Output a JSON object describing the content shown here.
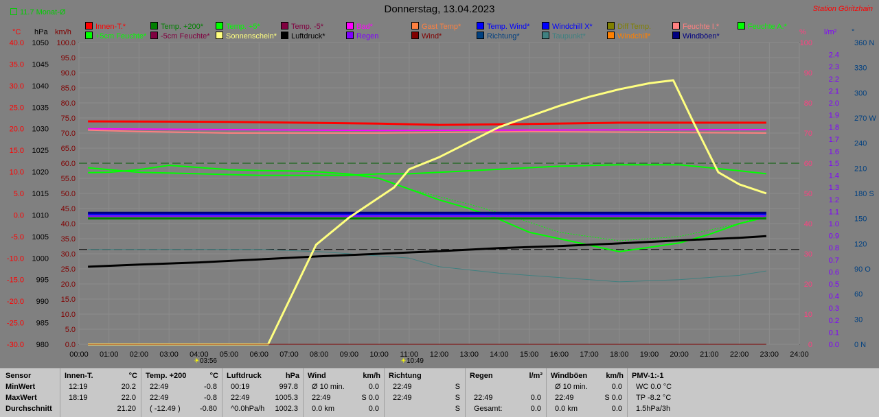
{
  "header": {
    "title": "Donnerstag, 13.04.2023",
    "station": "Station Göritzhain",
    "average_label": "11.7 Monat-Ø"
  },
  "legend": {
    "row1": [
      {
        "label": "Innen-T.*",
        "color": "#ff0000"
      },
      {
        "label": "Temp. +200*",
        "color": "#008000"
      },
      {
        "label": "Temp. +5*",
        "color": "#00ff00"
      },
      {
        "label": "Temp. -5*",
        "color": "#800040"
      },
      {
        "label": "Bad*",
        "color": "#ff00ff"
      },
      {
        "label": "Gast Temp*",
        "color": "#ff8040"
      },
      {
        "label": "Temp. Wind*",
        "color": "#0000ff"
      },
      {
        "label": "Windchill X*",
        "color": "#0000ff"
      },
      {
        "label": "Diff Temp.",
        "color": "#808000"
      },
      {
        "label": "Feuchte I.*",
        "color": "#ff8080"
      },
      {
        "label": "Feuchte A.*",
        "color": "#00ff00"
      }
    ],
    "row2": [
      {
        "label": "+5cm Feuchte*",
        "color": "#00ff00"
      },
      {
        "label": "-5cm Feuchte*",
        "color": "#800040"
      },
      {
        "label": "Sonnenschein*",
        "color": "#ffff80"
      },
      {
        "label": "Luftdruck*",
        "color": "#000000"
      },
      {
        "label": "Regen",
        "color": "#8000ff"
      },
      {
        "label": "Wind*",
        "color": "#800000"
      },
      {
        "label": "Richtung*",
        "color": "#004080"
      },
      {
        "label": "Taupunkt*",
        "color": "#408080"
      },
      {
        "label": "Windchill*",
        "color": "#ff8000"
      },
      {
        "label": "Windböen*",
        "color": "#000080"
      }
    ]
  },
  "units": {
    "temp": "°C",
    "hpa": "hPa",
    "kmh": "km/h",
    "pct": "%",
    "rain": "l/m²",
    "deg": "°"
  },
  "sun_markers": {
    "sunrise": "03:56",
    "sunset": "10:49"
  },
  "chart_data": {
    "type": "line",
    "x_range_hours": [
      0,
      24
    ],
    "x_ticks": [
      "00:00",
      "01:00",
      "02:00",
      "03:00",
      "04:00",
      "05:00",
      "06:00",
      "07:00",
      "08:00",
      "09:00",
      "10:00",
      "11:00",
      "12:00",
      "13:00",
      "14:00",
      "15:00",
      "16:00",
      "17:00",
      "18:00",
      "19:00",
      "20:00",
      "21:00",
      "22:00",
      "23:00",
      "24:00"
    ],
    "axes": {
      "temp": {
        "ticks": [
          "40.0",
          "35.0",
          "30.0",
          "25.0",
          "20.0",
          "15.0",
          "10.0",
          "5.0",
          "0.0",
          "-5.0",
          "-10.0",
          "-15.0",
          "-20.0",
          "-25.0",
          "-30.0"
        ],
        "range": [
          -30,
          40
        ]
      },
      "pressure": {
        "ticks": [
          "1050",
          "1045",
          "1040",
          "1035",
          "1030",
          "1025",
          "1020",
          "1015",
          "1010",
          "1005",
          "1000",
          "995",
          "990",
          "985",
          "980"
        ],
        "range": [
          980,
          1050
        ]
      },
      "speed": {
        "ticks": [
          "100.0",
          "95.0",
          "90.0",
          "85.0",
          "80.0",
          "75.0",
          "70.0",
          "65.0",
          "60.0",
          "55.0",
          "50.0",
          "45.0",
          "40.0",
          "35.0",
          "30.0",
          "25.0",
          "20.0",
          "15.0",
          "10.0",
          "5.0",
          "0.0"
        ],
        "range": [
          0,
          100
        ]
      },
      "humidity": {
        "ticks": [
          "100",
          "90",
          "80",
          "70",
          "60",
          "50",
          "40",
          "30",
          "20",
          "10",
          "0"
        ],
        "range": [
          0,
          100
        ]
      },
      "rain": {
        "ticks": [
          "2.4",
          "2.3",
          "2.2",
          "2.1",
          "2.0",
          "1.9",
          "1.8",
          "1.7",
          "1.6",
          "1.5",
          "1.4",
          "1.3",
          "1.2",
          "1.1",
          "1.0",
          "0.9",
          "0.8",
          "0.7",
          "0.6",
          "0.5",
          "0.4",
          "0.3",
          "0.2",
          "0.1",
          "0.0"
        ],
        "range": [
          0,
          2.5
        ]
      },
      "direction": {
        "ticks": [
          "360 N",
          "330",
          "300",
          "270 W",
          "240",
          "210",
          "180 S",
          "150",
          "120",
          "90 O",
          "60",
          "30",
          "0 N"
        ],
        "range": [
          0,
          360
        ]
      }
    },
    "series": [
      {
        "name": "Innen-T.*",
        "color": "#ff0000",
        "width": 3,
        "axis": "temp",
        "x": [
          0.3,
          5,
          10,
          12,
          15,
          18,
          22.9
        ],
        "y": [
          21.7,
          21.6,
          21.2,
          20.9,
          21.1,
          21.4,
          21.4
        ]
      },
      {
        "name": "Bad*",
        "color": "#ff00ff",
        "width": 2,
        "axis": "temp",
        "x": [
          0.3,
          5,
          10,
          15,
          22.9
        ],
        "y": [
          20.0,
          19.8,
          19.6,
          19.7,
          19.8
        ]
      },
      {
        "name": "Feuchte I.*",
        "color": "#ff8080",
        "width": 2,
        "axis": "humidity",
        "x": [
          0.3,
          2,
          5,
          10,
          15,
          22.9
        ],
        "y": [
          71,
          70.5,
          70,
          70,
          70.5,
          70
        ]
      },
      {
        "name": "Feuchte A.*",
        "color": "#00ff00",
        "width": 2,
        "axis": "humidity",
        "x": [
          0.3,
          2,
          4,
          6,
          8,
          9,
          10,
          11,
          12,
          14,
          16,
          18,
          20,
          22,
          22.9
        ],
        "y": [
          58.5,
          57,
          56.5,
          56,
          56,
          56,
          56.5,
          56.5,
          57,
          58,
          59,
          59.5,
          59.5,
          57.5,
          56.5
        ]
      },
      {
        "name": "Temp. +5*",
        "color": "#00ff00",
        "width": 2,
        "axis": "temp",
        "x": [
          0.3,
          1,
          2,
          3,
          4,
          5,
          6,
          7,
          8,
          9,
          10,
          11,
          12,
          13,
          14,
          15,
          16,
          17,
          18,
          18.3,
          19,
          20,
          21,
          22,
          22.9
        ],
        "y": [
          9.8,
          9.9,
          10.5,
          11.5,
          11,
          10.5,
          10.3,
          10.2,
          10,
          9.5,
          8.5,
          6,
          3.5,
          1.5,
          -1,
          -4,
          -5.5,
          -7,
          -8.5,
          -8.2,
          -7.5,
          -6.5,
          -4.5,
          -2,
          -0.5
        ]
      },
      {
        "name": "Windchill*",
        "color": "#00ff00",
        "width": 1,
        "dash": "2,2",
        "axis": "temp",
        "x": [
          11,
          13,
          14.5,
          16,
          18,
          20,
          22,
          22.9
        ],
        "y": [
          6,
          2.5,
          -0.5,
          -4,
          -6,
          -5,
          -2,
          0
        ]
      },
      {
        "name": "Temp. +200*",
        "color": "#008000",
        "width": 3,
        "axis": "temp",
        "x": [
          0.3,
          22.9
        ],
        "y": [
          -0.8,
          -0.8
        ]
      },
      {
        "name": "Temp. Wind*",
        "color": "#0000ff",
        "width": 3,
        "axis": "temp",
        "x": [
          0.3,
          22.9
        ],
        "y": [
          0.2,
          0.2
        ]
      },
      {
        "name": "Windböen*",
        "color": "#000080",
        "width": 3,
        "axis": "temp",
        "x": [
          0.3,
          22.9
        ],
        "y": [
          0.5,
          0.5
        ]
      },
      {
        "name": "Regen",
        "color": "#8000ff",
        "width": 2,
        "axis": "temp",
        "x": [
          0.3,
          22.9
        ],
        "y": [
          -0.3,
          -0.3
        ]
      },
      {
        "name": "Taupunkt*",
        "color": "#408080",
        "width": 1,
        "axis": "temp",
        "x": [
          0.3,
          2,
          4,
          6,
          8,
          10,
          11,
          12,
          14,
          16,
          18,
          20,
          22,
          22.9
        ],
        "y": [
          -8,
          -8,
          -8,
          -8,
          -8.5,
          -9.5,
          -10,
          -12,
          -13.5,
          -14.5,
          -15.5,
          -15,
          -14,
          -13
        ]
      },
      {
        "name": "Luftdruck*",
        "color": "#000000",
        "width": 3,
        "axis": "pressure",
        "x": [
          0.3,
          2,
          4,
          6,
          8,
          10,
          12,
          14,
          16,
          18,
          20,
          22,
          22.9
        ],
        "y": [
          998,
          998.5,
          999,
          999.7,
          1000.4,
          1001,
          1001.6,
          1002.3,
          1002.8,
          1003.4,
          1004.1,
          1004.7,
          1005.1
        ]
      },
      {
        "name": "Sonnenschein*",
        "color": "#ffff80",
        "width": 3,
        "axis": "speed",
        "x": [
          0.3,
          6.3,
          7.9,
          9,
          10.5,
          11,
          12,
          13,
          14,
          15,
          16,
          17,
          18,
          19,
          19.8,
          20.5,
          21.3,
          22,
          22.9
        ],
        "y": [
          0,
          0,
          33,
          42,
          52,
          58,
          62,
          67,
          72,
          75.5,
          79,
          82,
          84.5,
          86.5,
          87.5,
          73,
          57,
          53,
          50
        ]
      },
      {
        "name": "Wind*",
        "color": "#800000",
        "width": 1,
        "axis": "speed",
        "x": [
          0.3,
          22.9
        ],
        "y": [
          0,
          0
        ]
      }
    ],
    "reference_lines": [
      {
        "color": "#006000",
        "dash": "12,5",
        "axis": "humidity",
        "value": 60
      },
      {
        "color": "#000000",
        "dash": "12,5",
        "axis": "temp",
        "value": -8
      }
    ]
  },
  "stats": {
    "sensor": {
      "title": "Sensor",
      "rows": [
        "MinWert",
        "MaxWert",
        "Durchschnitt"
      ]
    },
    "blocks": [
      {
        "title": "Innen-T.",
        "unit": "°C",
        "rows": [
          [
            "12:19",
            "20.2"
          ],
          [
            "18:19",
            "22.0"
          ],
          [
            "",
            "21.20"
          ]
        ]
      },
      {
        "title": "Temp. +200",
        "unit": "°C",
        "rows": [
          [
            "22:49",
            "-0.8"
          ],
          [
            "22:49",
            "-0.8"
          ],
          [
            "( -12.49 )",
            "-0.80"
          ]
        ]
      },
      {
        "title": "Luftdruck",
        "unit": "hPa",
        "rows": [
          [
            "00:19",
            "997.8"
          ],
          [
            "22:49",
            "1005.3"
          ],
          [
            "^0.0hPa/h",
            "1002.3"
          ]
        ]
      },
      {
        "title": "Wind",
        "unit": "km/h",
        "rows": [
          [
            "Ø 10 min.",
            "0.0"
          ],
          [
            "22:49",
            "S 0.0"
          ],
          [
            "0.0 km",
            "0.0"
          ]
        ]
      },
      {
        "title": "Richtung",
        "unit": "",
        "rows": [
          [
            "22:49",
            "S"
          ],
          [
            "22:49",
            "S"
          ],
          [
            "",
            "S"
          ]
        ]
      },
      {
        "title": "Regen",
        "unit": "l/m²",
        "rows": [
          [
            "",
            ""
          ],
          [
            "22:49",
            "0.0"
          ],
          [
            "Gesamt:",
            "0.0"
          ]
        ]
      },
      {
        "title": "Windböen",
        "unit": "km/h",
        "rows": [
          [
            "Ø 10 min.",
            "0.0"
          ],
          [
            "22:49",
            "S 0.0"
          ],
          [
            "0.0 km",
            "0.0"
          ]
        ]
      },
      {
        "title": "PMV-1:-1",
        "unit": "",
        "rows": [
          [
            "WC 0.0 °C",
            ""
          ],
          [
            "TP -8.2 °C",
            ""
          ],
          [
            "1.5hPa/3h",
            ""
          ]
        ]
      }
    ]
  }
}
